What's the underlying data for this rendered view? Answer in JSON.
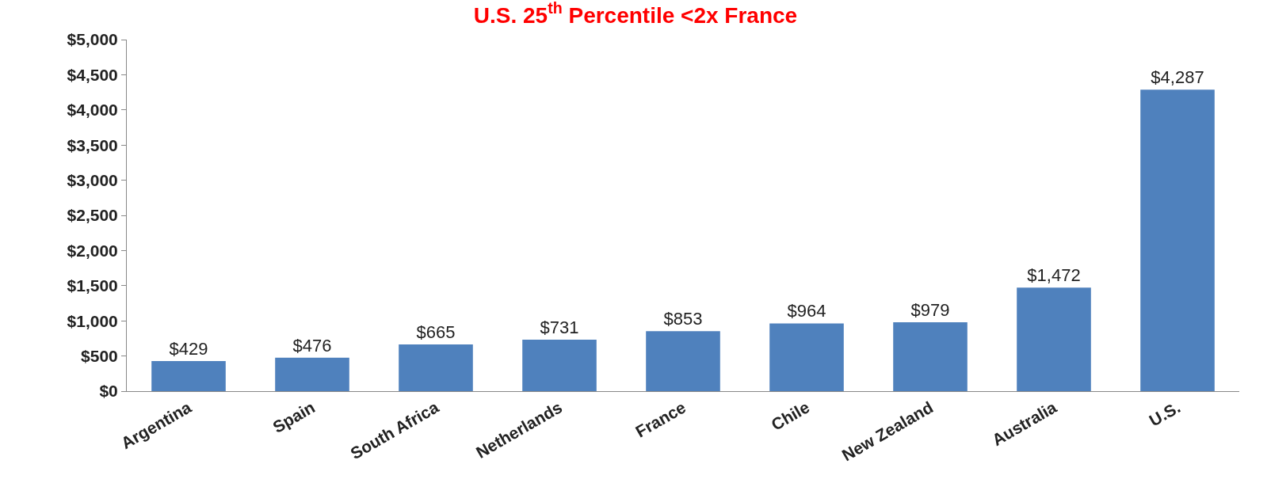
{
  "chart_data": {
    "type": "bar",
    "title": "U.S. 25$^{th}$ Percentile <2x France",
    "categories": [
      "Argentina",
      "Spain",
      "South Africa",
      "Netherlands",
      "France",
      "Chile",
      "New Zealand",
      "Australia",
      "U.S."
    ],
    "values": [
      429,
      476,
      665,
      731,
      853,
      964,
      979,
      1472,
      4287
    ],
    "value_labels": [
      "$429",
      "$476",
      "$665",
      "$731",
      "$853",
      "$964",
      "$979",
      "$1,472",
      "$4,287"
    ],
    "color": "#4f81bd",
    "ylim": [
      0,
      5000
    ],
    "yticks": [
      {
        "value": 0,
        "label": "$0"
      },
      {
        "value": 500,
        "label": "$500"
      },
      {
        "value": 1000,
        "label": "$1,000"
      },
      {
        "value": 1500,
        "label": "$1,500"
      },
      {
        "value": 2000,
        "label": "$2,000"
      },
      {
        "value": 2500,
        "label": "$2,500"
      },
      {
        "value": 3000,
        "label": "$3,000"
      },
      {
        "value": 3500,
        "label": "$3,500"
      },
      {
        "value": 4000,
        "label": "$4,000"
      },
      {
        "value": 4500,
        "label": "$4,500"
      },
      {
        "value": 5000,
        "label": "$5,000"
      }
    ],
    "grid": false
  }
}
